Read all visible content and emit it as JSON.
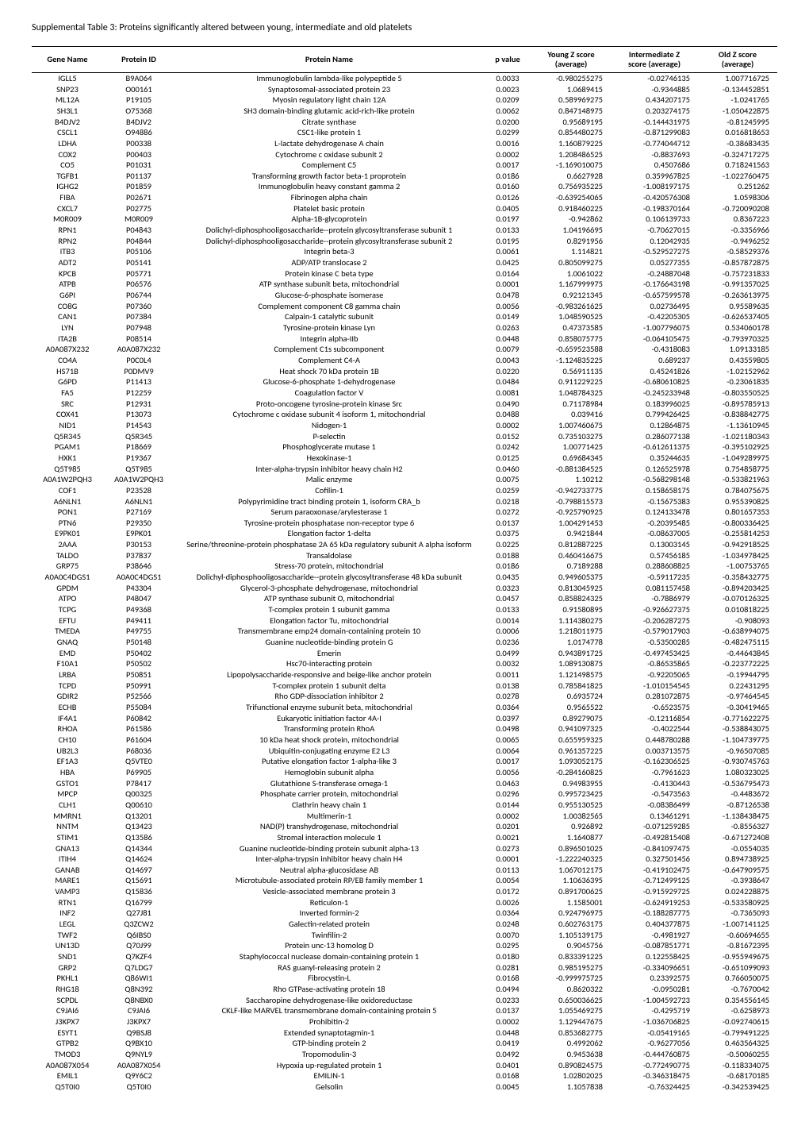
{
  "title": "Supplemental Table 3: Proteins significantly altered between young, intermediate and old platelets",
  "table": {
    "columns": [
      "Gene Name",
      "Protein ID",
      "Protein Name",
      "p value",
      "Young Z score\n(average)",
      "Intermediate Z\nscore (average)",
      "Old Z score\n(average)"
    ],
    "col_align": [
      "center",
      "center",
      "center",
      "center",
      "right",
      "right",
      "right"
    ],
    "header_fontsize": 10.5,
    "header_fontweight": "bold",
    "cell_fontsize": 10.5,
    "border_color": "#000000",
    "background_color": "#ffffff",
    "rows": [
      [
        "IGLL5",
        "B9A064",
        "Immunoglobulin lambda-like polypeptide 5",
        "0.0033",
        "-0.980255275",
        "-0.02746135",
        "1.007716725"
      ],
      [
        "SNP23",
        "O00161",
        "Synaptosomal-associated protein 23",
        "0.0023",
        "1.0689415",
        "-0.9344885",
        "-0.134452851"
      ],
      [
        "ML12A",
        "P19105",
        "Myosin regulatory light chain 12A",
        "0.0209",
        "0.589969275",
        "0.434207175",
        "-1.0241765"
      ],
      [
        "SH3L1",
        "O75368",
        "SH3 domain-binding glutamic acid-rich-like protein",
        "0.0062",
        "0.847148975",
        "0.203274175",
        "-1.050422875"
      ],
      [
        "B4DJV2",
        "B4DJV2",
        "Citrate synthase",
        "0.0200",
        "0.95689195",
        "-0.144431975",
        "-0.81245995"
      ],
      [
        "CSCL1",
        "O94886",
        "CSC1-like protein 1",
        "0.0299",
        "0.854480275",
        "-0.871299083",
        "0.016818653"
      ],
      [
        "LDHA",
        "P00338",
        "L-lactate dehydrogenase A chain",
        "0.0016",
        "1.160879225",
        "-0.774044712",
        "-0.38683435"
      ],
      [
        "COX2",
        "P00403",
        "Cytochrome c oxidase subunit 2",
        "0.0002",
        "1.208486525",
        "-0.8837693",
        "-0.324717275"
      ],
      [
        "CO5",
        "P01031",
        "Complement C5",
        "0.0017",
        "-1.169010075",
        "0.4507686",
        "0.718241563"
      ],
      [
        "TGFB1",
        "P01137",
        "Transforming growth factor beta-1 proprotein",
        "0.0186",
        "0.6627928",
        "0.359967825",
        "-1.022760475"
      ],
      [
        "IGHG2",
        "P01859",
        "Immunoglobulin heavy constant gamma 2",
        "0.0160",
        "0.756935225",
        "-1.008197175",
        "0.251262"
      ],
      [
        "FIBA",
        "P02671",
        "Fibrinogen alpha chain",
        "0.0126",
        "-0.639254065",
        "-0.420576308",
        "1.0598306"
      ],
      [
        "CXCL7",
        "P02775",
        "Platelet basic protein",
        "0.0405",
        "0.918460225",
        "-0.198370164",
        "-0.720090208"
      ],
      [
        "M0R009",
        "M0R009",
        "Alpha-1B-glycoprotein",
        "0.0197",
        "-0.942862",
        "0.106139733",
        "0.8367223"
      ],
      [
        "RPN1",
        "P04843",
        "Dolichyl-diphosphooligosaccharide--protein glycosyltransferase subunit 1",
        "0.0133",
        "1.04196695",
        "-0.70627015",
        "-0.3356966"
      ],
      [
        "RPN2",
        "P04844",
        "Dolichyl-diphosphooligosaccharide--protein glycosyltransferase subunit 2",
        "0.0195",
        "0.8291956",
        "0.12042935",
        "-0.9496252"
      ],
      [
        "ITB3",
        "P05106",
        "Integrin beta-3",
        "0.0061",
        "1.114821",
        "-0.529527275",
        "-0.58529376"
      ],
      [
        "ADT2",
        "P05141",
        "ADP/ATP translocase 2",
        "0.0425",
        "0.805099275",
        "0.05277355",
        "-0.857872875"
      ],
      [
        "KPCB",
        "P05771",
        "Protein kinase C beta type",
        "0.0164",
        "1.0061022",
        "-0.24887048",
        "-0.757231833"
      ],
      [
        "ATPB",
        "P06576",
        "ATP synthase subunit beta, mitochondrial",
        "0.0001",
        "1.167999975",
        "-0.176643198",
        "-0.991357025"
      ],
      [
        "G6PI",
        "P06744",
        "Glucose-6-phosphate isomerase",
        "0.0478",
        "0.92121345",
        "-0.657599578",
        "-0.263613975"
      ],
      [
        "CO8G",
        "P07360",
        "Complement component C8 gamma chain",
        "0.0056",
        "-0.983261625",
        "0.02736495",
        "0.95589635"
      ],
      [
        "CAN1",
        "P07384",
        "Calpain-1 catalytic subunit",
        "0.0149",
        "1.048590525",
        "-0.42205305",
        "-0.626537405"
      ],
      [
        "LYN",
        "P07948",
        "Tyrosine-protein kinase Lyn",
        "0.0263",
        "0.47373585",
        "-1.007796075",
        "0.534060178"
      ],
      [
        "ITA2B",
        "P08514",
        "Integrin alpha-IIb",
        "0.0448",
        "0.858075775",
        "-0.064105475",
        "-0.793970325"
      ],
      [
        "A0A087X232",
        "A0A087X232",
        "Complement C1s subcomponent",
        "0.0079",
        "-0.659523588",
        "-0.4318083",
        "1.09133185"
      ],
      [
        "CO4A",
        "P0C0L4",
        "Complement C4-A",
        "0.0043",
        "-1.124835225",
        "0.689237",
        "0.43559805"
      ],
      [
        "HS71B",
        "P0DMV9",
        "Heat shock 70 kDa protein 1B",
        "0.0220",
        "0.56911135",
        "0.45241826",
        "-1.02152962"
      ],
      [
        "G6PD",
        "P11413",
        "Glucose-6-phosphate 1-dehydrogenase",
        "0.0484",
        "0.911229225",
        "-0.680610825",
        "-0.23061835"
      ],
      [
        "FA5",
        "P12259",
        "Coagulation factor V",
        "0.0081",
        "1.048784325",
        "-0.245233948",
        "-0.803550525"
      ],
      [
        "SRC",
        "P12931",
        "Proto-oncogene tyrosine-protein kinase Src",
        "0.0490",
        "0.71178984",
        "0.183996025",
        "-0.895785913"
      ],
      [
        "COX41",
        "P13073",
        "Cytochrome c oxidase subunit 4 isoform 1, mitochondrial",
        "0.0488",
        "0.039416",
        "0.799426425",
        "-0.838842775"
      ],
      [
        "NID1",
        "P14543",
        "Nidogen-1",
        "0.0002",
        "1.007460675",
        "0.12864875",
        "-1.13610945"
      ],
      [
        "Q5R345",
        "Q5R345",
        "P-selectin",
        "0.0152",
        "0.735103275",
        "0.286077138",
        "-1.021180343"
      ],
      [
        "PGAM1",
        "P18669",
        "Phosphoglycerate mutase 1",
        "0.0242",
        "1.00771425",
        "-0.612611375",
        "-0.395102925"
      ],
      [
        "HXK1",
        "P19367",
        "Hexokinase-1",
        "0.0125",
        "0.69684345",
        "0.35244635",
        "-1.049289975"
      ],
      [
        "Q5T985",
        "Q5T985",
        "Inter-alpha-trypsin inhibitor heavy chain H2",
        "0.0460",
        "-0.881384525",
        "0.126525978",
        "0.754858775"
      ],
      [
        "A0A1W2PQH3",
        "A0A1W2PQH3",
        "Malic enzyme",
        "0.0075",
        "1.10212",
        "-0.568298148",
        "-0.533821963"
      ],
      [
        "COF1",
        "P23528",
        "Cofilin-1",
        "0.0259",
        "-0.942733775",
        "0.158658175",
        "0.784075675"
      ],
      [
        "A6NLN1",
        "A6NLN1",
        "Polypyrimidine tract binding protein 1, isoform CRA_b",
        "0.0218",
        "-0.798815573",
        "-0.15675383",
        "0.955390825"
      ],
      [
        "PON1",
        "P27169",
        "Serum paraoxonase/arylesterase 1",
        "0.0272",
        "-0.925790925",
        "0.124133478",
        "0.801657353"
      ],
      [
        "PTN6",
        "P29350",
        "Tyrosine-protein phosphatase non-receptor type 6",
        "0.0137",
        "1.004291453",
        "-0.20395485",
        "-0.800336425"
      ],
      [
        "E9PK01",
        "E9PK01",
        "Elongation factor 1-delta",
        "0.0375",
        "0.9421844",
        "-0.08637005",
        "-0.255814253"
      ],
      [
        "2AAA",
        "P30153",
        "Serine/threonine-protein phosphatase 2A 65 kDa regulatory subunit A alpha isoform",
        "0.0225",
        "0.812887225",
        "0.13003145",
        "-0.942918525"
      ],
      [
        "TALDO",
        "P37837",
        "Transaldolase",
        "0.0188",
        "0.460416675",
        "0.57456185",
        "-1.034978425"
      ],
      [
        "GRP75",
        "P38646",
        "Stress-70 protein, mitochondrial",
        "0.0186",
        "0.7189288",
        "0.288608825",
        "-1.00753765"
      ],
      [
        "A0A0C4DGS1",
        "A0A0C4DGS1",
        "Dolichyl-diphosphooligosaccharide--protein glycosyltransferase 48 kDa subunit",
        "0.0435",
        "0.949605375",
        "-0.59117235",
        "-0.358432775"
      ],
      [
        "GPDM",
        "P43304",
        "Glycerol-3-phosphate dehydrogenase, mitochondrial",
        "0.0323",
        "0.813045925",
        "0.081157458",
        "-0.894203425"
      ],
      [
        "ATPO",
        "P48047",
        "ATP synthase subunit O, mitochondrial",
        "0.0457",
        "0.858824325",
        "-0.7886979",
        "-0.070126325"
      ],
      [
        "TCPG",
        "P49368",
        "T-complex protein 1 subunit gamma",
        "0.0133",
        "0.91580895",
        "-0.926627375",
        "0.010818225"
      ],
      [
        "EFTU",
        "P49411",
        "Elongation factor Tu, mitochondrial",
        "0.0014",
        "1.114380275",
        "-0.206287275",
        "-0.908093"
      ],
      [
        "TMEDA",
        "P49755",
        "Transmembrane emp24 domain-containing protein 10",
        "0.0006",
        "1.218011975",
        "-0.579017903",
        "-0.638994075"
      ],
      [
        "GNAQ",
        "P50148",
        "Guanine nucleotide-binding protein G",
        "0.0236",
        "1.0174778",
        "-0.53500285",
        "-0.482475115"
      ],
      [
        "EMD",
        "P50402",
        "Emerin",
        "0.0499",
        "0.943891725",
        "-0.497453425",
        "-0.44643845"
      ],
      [
        "F10A1",
        "P50502",
        "Hsc70-interacting protein",
        "0.0032",
        "1.089130875",
        "-0.86535865",
        "-0.223772225"
      ],
      [
        "LRBA",
        "P50851",
        "Lipopolysaccharide-responsive and beige-like anchor protein",
        "0.0011",
        "1.121498575",
        "-0.92205065",
        "-0.19944795"
      ],
      [
        "TCPD",
        "P50991",
        "T-complex protein 1 subunit delta",
        "0.0138",
        "0.785841825",
        "-1.010154545",
        "0.22431295"
      ],
      [
        "GDIR2",
        "P52566",
        "Rho GDP-dissociation inhibitor 2",
        "0.0278",
        "0.6935724",
        "0.281072875",
        "-0.97464545"
      ],
      [
        "ECHB",
        "P55084",
        "Trifunctional enzyme subunit beta, mitochondrial",
        "0.0364",
        "0.9565522",
        "-0.6523575",
        "-0.30419465"
      ],
      [
        "IF4A1",
        "P60842",
        "Eukaryotic initiation factor 4A-I",
        "0.0397",
        "0.89279075",
        "-0.12116854",
        "-0.771622275"
      ],
      [
        "RHOA",
        "P61586",
        "Transforming protein RhoA",
        "0.0498",
        "0.941097325",
        "-0.4022544",
        "-0.538843075"
      ],
      [
        "CH10",
        "P61604",
        "10 kDa heat shock protein, mitochondrial",
        "0.0065",
        "0.655959325",
        "0.448780288",
        "-1.104739775"
      ],
      [
        "UB2L3",
        "P68036",
        "Ubiquitin-conjugating enzyme E2 L3",
        "0.0064",
        "0.961357225",
        "0.003713575",
        "-0.96507085"
      ],
      [
        "EF1A3",
        "Q5VTE0",
        "Putative elongation factor 1-alpha-like 3",
        "0.0017",
        "1.093052175",
        "-0.162306525",
        "-0.930745763"
      ],
      [
        "HBA",
        "P69905",
        "Hemoglobin subunit alpha",
        "0.0056",
        "-0.284160825",
        "-0.7961623",
        "1.080323025"
      ],
      [
        "GSTO1",
        "P78417",
        "Glutathione S-transferase omega-1",
        "0.0463",
        "0.94983955",
        "-0.4130443",
        "-0.536795473"
      ],
      [
        "MPCP",
        "Q00325",
        "Phosphate carrier protein, mitochondrial",
        "0.0296",
        "0.995723425",
        "-0.5473563",
        "-0.4483672"
      ],
      [
        "CLH1",
        "Q00610",
        "Clathrin heavy chain 1",
        "0.0144",
        "0.955130525",
        "-0.08386499",
        "-0.87126538"
      ],
      [
        "MMRN1",
        "Q13201",
        "Multimerin-1",
        "0.0002",
        "1.00382565",
        "0.13461291",
        "-1.138438475"
      ],
      [
        "NNTM",
        "Q13423",
        "NAD(P) transhydrogenase, mitochondrial",
        "0.0201",
        "0.926892",
        "-0.071259285",
        "-0.8556327"
      ],
      [
        "STIM1",
        "Q13586",
        "Stromal interaction molecule 1",
        "0.0021",
        "1.1640877",
        "-0.492815408",
        "-0.671272408"
      ],
      [
        "GNA13",
        "Q14344",
        "Guanine nucleotide-binding protein subunit alpha-13",
        "0.0273",
        "0.896501025",
        "-0.841097475",
        "-0.0554035"
      ],
      [
        "ITIH4",
        "Q14624",
        "Inter-alpha-trypsin inhibitor heavy chain H4",
        "0.0001",
        "-1.222240325",
        "0.327501456",
        "0.894738925"
      ],
      [
        "GANAB",
        "Q14697",
        "Neutral alpha-glucosidase AB",
        "0.0113",
        "1.067012175",
        "-0.419102475",
        "-0.647909575"
      ],
      [
        "MARE1",
        "Q15691",
        "Microtubule-associated protein RP/EB family member 1",
        "0.0054",
        "1.10636395",
        "-0.712499125",
        "-0.3938647"
      ],
      [
        "VAMP3",
        "Q15836",
        "Vesicle-associated membrane protein 3",
        "0.0172",
        "0.891700625",
        "-0.915929725",
        "0.024228875"
      ],
      [
        "RTN1",
        "Q16799",
        "Reticulon-1",
        "0.0026",
        "1.1585001",
        "-0.624919253",
        "-0.533580925"
      ],
      [
        "INF2",
        "Q27J81",
        "Inverted formin-2",
        "0.0364",
        "0.924796975",
        "-0.188287775",
        "-0.7365093"
      ],
      [
        "LEGL",
        "Q3ZCW2",
        "Galectin-related protein",
        "0.0248",
        "0.602763175",
        "0.404377875",
        "-1.007141125"
      ],
      [
        "TWF2",
        "Q6IBS0",
        "Twinfilin-2",
        "0.0070",
        "1.105139175",
        "-0.4981927",
        "-0.60694655"
      ],
      [
        "UN13D",
        "Q70J99",
        "Protein unc-13 homolog D",
        "0.0295",
        "0.9045756",
        "-0.087851771",
        "-0.81672395"
      ],
      [
        "SND1",
        "Q7KZF4",
        "Staphylococcal nuclease domain-containing protein 1",
        "0.0180",
        "0.833391225",
        "0.122558425",
        "-0.955949675"
      ],
      [
        "GRP2",
        "Q7LDG7",
        "RAS guanyl-releasing protein 2",
        "0.0281",
        "0.985195275",
        "-0.334096651",
        "-0.651099093"
      ],
      [
        "PKHL1",
        "Q86WI1",
        "Fibrocystin-L",
        "0.0168",
        "-0.999975725",
        "0.23392575",
        "0.766050075"
      ],
      [
        "RHG18",
        "Q8N392",
        "Rho GTPase-activating protein 18",
        "0.0494",
        "0.8620322",
        "-0.0950281",
        "-0.7670042"
      ],
      [
        "SCPDL",
        "Q8NBX0",
        "Saccharopine dehydrogenase-like oxidoreductase",
        "0.0233",
        "0.650036625",
        "-1.004592723",
        "0.354556145"
      ],
      [
        "C9JAI6",
        "C9JAI6",
        "CKLF-like MARVEL transmembrane domain-containing protein 5",
        "0.0137",
        "1.055469275",
        "-0.4295719",
        "-0.6258973"
      ],
      [
        "J3KPX7",
        "J3KPX7",
        "Prohibitin-2",
        "0.0002",
        "1.129447675",
        "-1.036706825",
        "-0.092740615"
      ],
      [
        "ESYT1",
        "Q9BSJ8",
        "Extended synaptotagmin-1",
        "0.0448",
        "0.853682775",
        "-0.05419165",
        "-0.799491225"
      ],
      [
        "GTPB2",
        "Q9BX10",
        "GTP-binding protein 2",
        "0.0419",
        "0.4992062",
        "-0.96277056",
        "0.463564325"
      ],
      [
        "TMOD3",
        "Q9NYL9",
        "Tropomodulin-3",
        "0.0492",
        "0.9453638",
        "-0.444760875",
        "-0.50060255"
      ],
      [
        "A0A087X054",
        "A0A087X054",
        "Hypoxia up-regulated protein 1",
        "0.0401",
        "0.890824575",
        "-0.772490775",
        "-0.118334075"
      ],
      [
        "EMIL1",
        "Q9Y6C2",
        "EMILIN-1",
        "0.0168",
        "1.02802025",
        "-0.346318475",
        "-0.68170185"
      ],
      [
        "Q5T0I0",
        "Q5T0I0",
        "Gelsolin",
        "0.0045",
        "1.1057838",
        "-0.76324425",
        "-0.342539425"
      ]
    ]
  }
}
